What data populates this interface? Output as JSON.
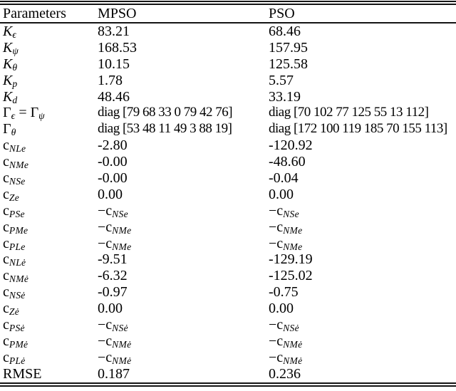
{
  "colors": {
    "text": "#000000",
    "background": "#ffffff",
    "rule": "#141414"
  },
  "table": {
    "headers": [
      "Parameters",
      "MPSO",
      "PSO"
    ],
    "rows": [
      {
        "label": [
          {
            "t": "K",
            "i": 1
          },
          {
            "t": "ϵ",
            "sub": 1
          }
        ],
        "mpso": [
          {
            "t": "83.21"
          }
        ],
        "pso": [
          {
            "t": "68.46"
          }
        ]
      },
      {
        "label": [
          {
            "t": "K",
            "i": 1
          },
          {
            "t": "ψ",
            "sub": 1
          }
        ],
        "mpso": [
          {
            "t": "168.53"
          }
        ],
        "pso": [
          {
            "t": "157.95"
          }
        ]
      },
      {
        "label": [
          {
            "t": "K",
            "i": 1
          },
          {
            "t": "θ",
            "sub": 1
          }
        ],
        "mpso": [
          {
            "t": "10.15"
          }
        ],
        "pso": [
          {
            "t": "125.58"
          }
        ]
      },
      {
        "label": [
          {
            "t": "K",
            "i": 1
          },
          {
            "t": "p",
            "sub": 1
          }
        ],
        "mpso": [
          {
            "t": "1.78"
          }
        ],
        "pso": [
          {
            "t": "5.57"
          }
        ]
      },
      {
        "label": [
          {
            "t": "K",
            "i": 1
          },
          {
            "t": "d",
            "sub": 1
          }
        ],
        "mpso": [
          {
            "t": "48.46"
          }
        ],
        "pso": [
          {
            "t": "33.19"
          }
        ]
      },
      {
        "label": [
          {
            "t": "Γ"
          },
          {
            "t": "ϵ",
            "sub": 1
          },
          {
            "t": " = "
          },
          {
            "t": "Γ"
          },
          {
            "t": "ψ",
            "sub": 1
          }
        ],
        "mpso": [
          {
            "t": "diag [79 68 33 0 79 42 76]"
          }
        ],
        "pso": [
          {
            "t": "diag [70 102 77 125 55 13 112]"
          }
        ]
      },
      {
        "label": [
          {
            "t": "Γ"
          },
          {
            "t": "θ",
            "sub": 1
          }
        ],
        "mpso": [
          {
            "t": "diag [53 48 11 49 3 88 19]"
          }
        ],
        "pso": [
          {
            "t": "diag [172 100 119 185 70 155 113]"
          }
        ]
      },
      {
        "label": [
          {
            "t": "c"
          },
          {
            "t": "NLe",
            "sub": 1
          }
        ],
        "mpso": [
          {
            "t": "-2.80"
          }
        ],
        "pso": [
          {
            "t": "-120.92"
          }
        ]
      },
      {
        "label": [
          {
            "t": "c"
          },
          {
            "t": "NMe",
            "sub": 1
          }
        ],
        "mpso": [
          {
            "t": "-0.00"
          }
        ],
        "pso": [
          {
            "t": "-48.60"
          }
        ]
      },
      {
        "label": [
          {
            "t": "c"
          },
          {
            "t": "NSe",
            "sub": 1
          }
        ],
        "mpso": [
          {
            "t": "-0.00"
          }
        ],
        "pso": [
          {
            "t": "-0.04"
          }
        ]
      },
      {
        "label": [
          {
            "t": "c"
          },
          {
            "t": "Ze",
            "sub": 1
          }
        ],
        "mpso": [
          {
            "t": "0.00"
          }
        ],
        "pso": [
          {
            "t": "0.00"
          }
        ]
      },
      {
        "label": [
          {
            "t": "c"
          },
          {
            "t": "PSe",
            "sub": 1
          }
        ],
        "mpso": [
          {
            "t": "−"
          },
          {
            "t": "c"
          },
          {
            "t": "NSe",
            "sub": 1
          }
        ],
        "pso": [
          {
            "t": "−"
          },
          {
            "t": "c"
          },
          {
            "t": "NSe",
            "sub": 1
          }
        ]
      },
      {
        "label": [
          {
            "t": "c"
          },
          {
            "t": "PMe",
            "sub": 1
          }
        ],
        "mpso": [
          {
            "t": "−"
          },
          {
            "t": "c"
          },
          {
            "t": "NMe",
            "sub": 1
          }
        ],
        "pso": [
          {
            "t": "−"
          },
          {
            "t": "c"
          },
          {
            "t": "NMe",
            "sub": 1
          }
        ]
      },
      {
        "label": [
          {
            "t": "c"
          },
          {
            "t": "PLe",
            "sub": 1
          }
        ],
        "mpso": [
          {
            "t": "−"
          },
          {
            "t": "c"
          },
          {
            "t": "NMe",
            "sub": 1
          }
        ],
        "pso": [
          {
            "t": "−"
          },
          {
            "t": "c"
          },
          {
            "t": "NMe",
            "sub": 1
          }
        ]
      },
      {
        "label": [
          {
            "t": "c"
          },
          {
            "t": "NLė",
            "sub": 1
          }
        ],
        "mpso": [
          {
            "t": "-9.51"
          }
        ],
        "pso": [
          {
            "t": "-129.19"
          }
        ]
      },
      {
        "label": [
          {
            "t": "c"
          },
          {
            "t": "NMė",
            "sub": 1
          }
        ],
        "mpso": [
          {
            "t": "-6.32"
          }
        ],
        "pso": [
          {
            "t": "-125.02"
          }
        ]
      },
      {
        "label": [
          {
            "t": "c"
          },
          {
            "t": "NSė",
            "sub": 1
          }
        ],
        "mpso": [
          {
            "t": "-0.97"
          }
        ],
        "pso": [
          {
            "t": "-0.75"
          }
        ]
      },
      {
        "label": [
          {
            "t": "c"
          },
          {
            "t": "Zė",
            "sub": 1
          }
        ],
        "mpso": [
          {
            "t": "0.00"
          }
        ],
        "pso": [
          {
            "t": "0.00"
          }
        ]
      },
      {
        "label": [
          {
            "t": "c"
          },
          {
            "t": "PSė",
            "sub": 1
          }
        ],
        "mpso": [
          {
            "t": "−"
          },
          {
            "t": "c"
          },
          {
            "t": "NSė",
            "sub": 1
          }
        ],
        "pso": [
          {
            "t": "−"
          },
          {
            "t": "c"
          },
          {
            "t": "NSė",
            "sub": 1
          }
        ]
      },
      {
        "label": [
          {
            "t": "c"
          },
          {
            "t": "PMė",
            "sub": 1
          }
        ],
        "mpso": [
          {
            "t": "−"
          },
          {
            "t": "c"
          },
          {
            "t": "NMė",
            "sub": 1
          }
        ],
        "pso": [
          {
            "t": "−"
          },
          {
            "t": "c"
          },
          {
            "t": "NMė",
            "sub": 1
          }
        ]
      },
      {
        "label": [
          {
            "t": "c"
          },
          {
            "t": "PLė",
            "sub": 1
          }
        ],
        "mpso": [
          {
            "t": "−"
          },
          {
            "t": "c"
          },
          {
            "t": "NMė",
            "sub": 1
          }
        ],
        "pso": [
          {
            "t": "−"
          },
          {
            "t": "c"
          },
          {
            "t": "NMė",
            "sub": 1
          }
        ]
      },
      {
        "label": [
          {
            "t": "RMSE"
          }
        ],
        "mpso": [
          {
            "t": "0.187"
          }
        ],
        "pso": [
          {
            "t": "0.236"
          }
        ]
      }
    ]
  }
}
